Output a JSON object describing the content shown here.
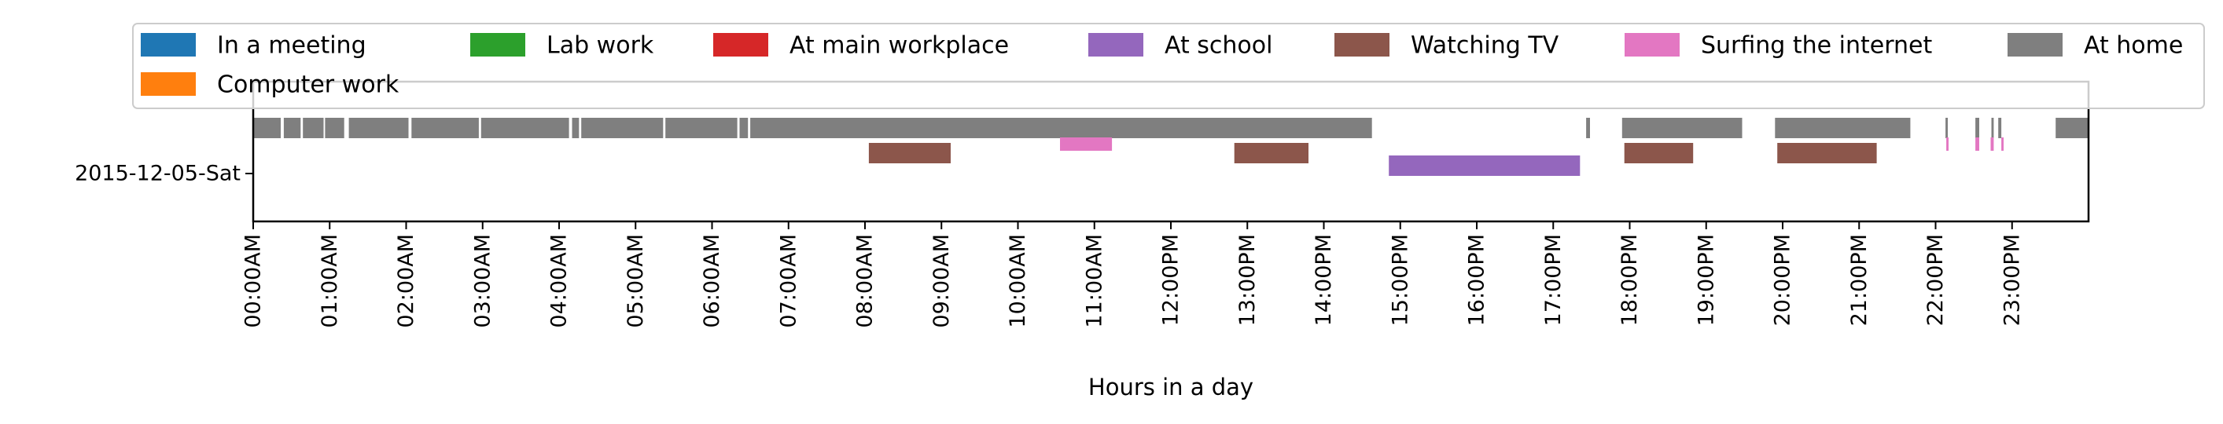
{
  "chart_data": {
    "type": "timeline",
    "title": "",
    "xlabel": "Hours in a day",
    "ylabel": "",
    "x_unit": "hours",
    "xlim": [
      0,
      24
    ],
    "xticks": [
      {
        "value": 0,
        "label": "00:00AM"
      },
      {
        "value": 1,
        "label": "01:00AM"
      },
      {
        "value": 2,
        "label": "02:00AM"
      },
      {
        "value": 3,
        "label": "03:00AM"
      },
      {
        "value": 4,
        "label": "04:00AM"
      },
      {
        "value": 5,
        "label": "05:00AM"
      },
      {
        "value": 6,
        "label": "06:00AM"
      },
      {
        "value": 7,
        "label": "07:00AM"
      },
      {
        "value": 8,
        "label": "08:00AM"
      },
      {
        "value": 9,
        "label": "09:00AM"
      },
      {
        "value": 10,
        "label": "10:00AM"
      },
      {
        "value": 11,
        "label": "11:00AM"
      },
      {
        "value": 12,
        "label": "12:00PM"
      },
      {
        "value": 13,
        "label": "13:00PM"
      },
      {
        "value": 14,
        "label": "14:00PM"
      },
      {
        "value": 15,
        "label": "15:00PM"
      },
      {
        "value": 16,
        "label": "16:00PM"
      },
      {
        "value": 17,
        "label": "17:00PM"
      },
      {
        "value": 18,
        "label": "18:00PM"
      },
      {
        "value": 19,
        "label": "19:00PM"
      },
      {
        "value": 20,
        "label": "20:00PM"
      },
      {
        "value": 21,
        "label": "21:00PM"
      },
      {
        "value": 22,
        "label": "22:00PM"
      },
      {
        "value": 23,
        "label": "23:00PM"
      }
    ],
    "yticks": [
      {
        "label": "2015-12-05-Sat"
      }
    ],
    "grid": false,
    "legend_position": "top",
    "legend": [
      {
        "name": "In a meeting",
        "color": "#1f77b4"
      },
      {
        "name": "Lab work",
        "color": "#2ca02c"
      },
      {
        "name": "At main workplace",
        "color": "#d62728"
      },
      {
        "name": "At school",
        "color": "#9467bd"
      },
      {
        "name": "Watching TV",
        "color": "#8c564b"
      },
      {
        "name": "Surfing the internet",
        "color": "#e377c2"
      },
      {
        "name": "At home",
        "color": "#7f7f7f"
      },
      {
        "name": "Computer work",
        "color": "#ff7f0e"
      }
    ],
    "series": [
      {
        "name": "At home",
        "color": "#7f7f7f",
        "lane": 0,
        "intervals": [
          [
            0.0,
            0.36
          ],
          [
            0.4,
            0.62
          ],
          [
            0.65,
            0.92
          ],
          [
            0.94,
            1.19
          ],
          [
            1.25,
            2.03
          ],
          [
            2.07,
            2.95
          ],
          [
            2.98,
            4.13
          ],
          [
            4.17,
            4.26
          ],
          [
            4.29,
            5.36
          ],
          [
            5.39,
            6.33
          ],
          [
            6.36,
            6.47
          ],
          [
            6.5,
            14.63
          ],
          [
            17.43,
            17.48
          ],
          [
            17.9,
            19.47
          ],
          [
            19.9,
            21.67
          ],
          [
            22.13,
            22.16
          ],
          [
            22.52,
            22.57
          ],
          [
            22.73,
            22.76
          ],
          [
            22.82,
            22.86
          ],
          [
            23.57,
            24.0
          ]
        ]
      },
      {
        "name": "Surfing the internet",
        "color": "#e377c2",
        "lane": 1,
        "intervals": [
          [
            10.55,
            11.23
          ],
          [
            22.14,
            22.17
          ],
          [
            22.52,
            22.57
          ],
          [
            22.72,
            22.76
          ],
          [
            22.86,
            22.89
          ]
        ]
      },
      {
        "name": "Watching TV",
        "color": "#8c564b",
        "lane": 2,
        "intervals": [
          [
            8.05,
            9.12
          ],
          [
            12.83,
            13.8
          ],
          [
            17.93,
            18.83
          ],
          [
            19.93,
            21.23
          ]
        ]
      },
      {
        "name": "At school",
        "color": "#9467bd",
        "lane": 3,
        "intervals": [
          [
            14.85,
            17.35
          ]
        ]
      }
    ]
  }
}
